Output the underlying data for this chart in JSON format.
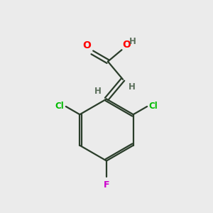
{
  "background_color": "#ebebeb",
  "bond_color": "#2a3d2a",
  "atom_colors": {
    "O": "#ff0000",
    "H": "#5a6e5a",
    "Cl": "#00bb00",
    "F": "#cc00cc",
    "C": "#2a3d2a"
  },
  "figsize": [
    3.0,
    3.0
  ],
  "dpi": 100,
  "xlim": [
    0,
    10
  ],
  "ylim": [
    0,
    10
  ]
}
